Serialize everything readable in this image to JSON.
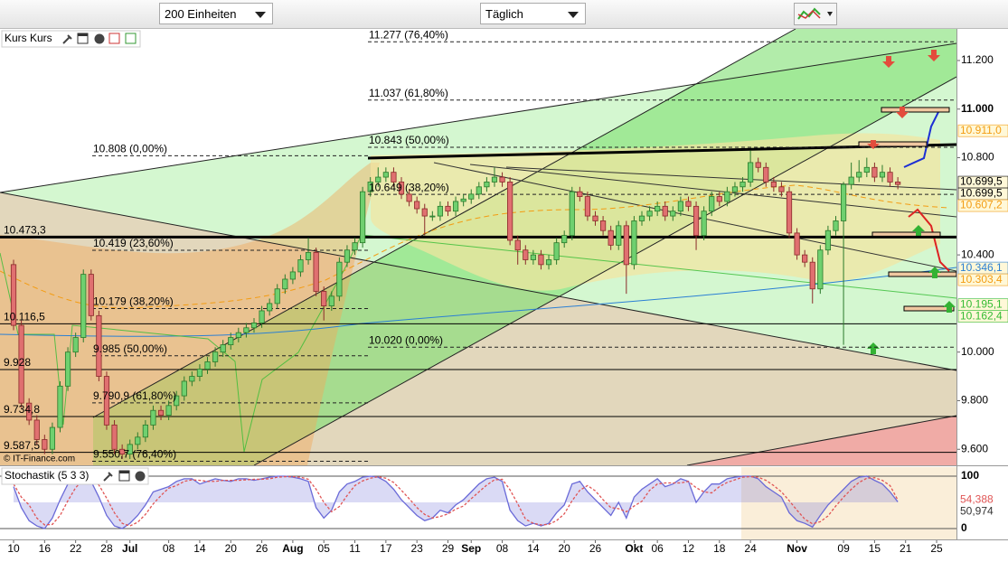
{
  "toolbar": {
    "units": "200 Einheiten",
    "interval": "Täglich"
  },
  "chart_data": [
    {
      "type": "candlestick",
      "title": "Kurs Kurs",
      "copyright": "© IT-Finance.com",
      "xlim": [
        -1.75,
        121.56
      ],
      "ylim": [
        9534,
        11330
      ],
      "yticks": [
        {
          "value": 11200,
          "label": "11.200"
        },
        {
          "value": 11000,
          "label": "11.000"
        },
        {
          "value": 10800,
          "label": "10.800"
        },
        {
          "value": 10400,
          "label": "10.400"
        },
        {
          "value": 10000,
          "label": "10.000"
        },
        {
          "value": 9800,
          "label": "9.800"
        },
        {
          "value": 9600,
          "label": "9.600"
        }
      ],
      "hlines": [
        {
          "value": 10473.3,
          "label": "10.473,3"
        },
        {
          "value": 10116.5,
          "label": "10.116,5"
        },
        {
          "value": 9928,
          "label": "9.928"
        },
        {
          "value": 9734.8,
          "label": "9.734,8"
        },
        {
          "value": 9587.5,
          "label": "9.587,5"
        }
      ],
      "fibonacci": [
        {
          "levels": [
            {
              "value": 10808,
              "label": "10.808 (0,00%)"
            },
            {
              "value": 10419,
              "label": "10.419 (23,60%)"
            },
            {
              "value": 10179,
              "label": "10.179 (38,20%)"
            },
            {
              "value": 9985,
              "label": "9.985 (50,00%)"
            },
            {
              "value": 9790.9,
              "label": "9.790,9 (61,80%)"
            },
            {
              "value": 9550.7,
              "label": "9.550,7 (76,40%)"
            }
          ]
        },
        {
          "levels": [
            {
              "value": 11277,
              "label": "11.277 (76,40%)"
            },
            {
              "value": 11037,
              "label": "11.037 (61,80%)"
            },
            {
              "value": 10843,
              "label": "10.843 (50,00%)"
            },
            {
              "value": 10649,
              "label": "10.649 (38,20%)"
            },
            {
              "value": 10020,
              "label": "10.020 (0,00%)"
            }
          ]
        }
      ],
      "last_values": [
        {
          "value": 10911,
          "label": "10.911,0",
          "color": "#f39c12"
        },
        {
          "value": 10699.5,
          "label": "10.699,5",
          "color": "#000000"
        },
        {
          "value": 10699.5,
          "label": "10.699,5",
          "color": "#000000"
        },
        {
          "value": 10607.2,
          "label": "10.607,2",
          "color": "#f39c12"
        },
        {
          "value": 10346.1,
          "label": "10.346,1",
          "color": "#2a7fd4"
        },
        {
          "value": 10303.4,
          "label": "10.303,4",
          "color": "#f39c12"
        },
        {
          "value": 10195.1,
          "label": "10.195,1",
          "color": "#33bb33"
        },
        {
          "value": 10162.4,
          "label": "10.162,4",
          "color": "#33bb33"
        }
      ],
      "candles": [
        [
          10360,
          10380,
          10090,
          10110
        ],
        [
          10110,
          10130,
          9770,
          9790
        ],
        [
          9790,
          9810,
          9700,
          9720
        ],
        [
          9720,
          9740,
          9620,
          9640
        ],
        [
          9640,
          9660,
          9580,
          9600
        ],
        [
          9600,
          9710,
          9580,
          9690
        ],
        [
          9690,
          9880,
          9670,
          9860
        ],
        [
          9860,
          10020,
          9840,
          10000
        ],
        [
          10000,
          10080,
          9980,
          10060
        ],
        [
          10060,
          10340,
          10040,
          10320
        ],
        [
          10320,
          10340,
          10130,
          10150
        ],
        [
          10150,
          10170,
          9880,
          9900
        ],
        [
          9900,
          9920,
          9680,
          9700
        ],
        [
          9700,
          9720,
          9580,
          9600
        ],
        [
          9600,
          9620,
          9560,
          9580
        ],
        [
          9580,
          9640,
          9560,
          9620
        ],
        [
          9620,
          9670,
          9600,
          9650
        ],
        [
          9650,
          9720,
          9630,
          9700
        ],
        [
          9700,
          9780,
          9680,
          9760
        ],
        [
          9760,
          9780,
          9720,
          9740
        ],
        [
          9740,
          9800,
          9720,
          9780
        ],
        [
          9780,
          9840,
          9760,
          9820
        ],
        [
          9820,
          9900,
          9800,
          9880
        ],
        [
          9880,
          9920,
          9860,
          9900
        ],
        [
          9900,
          9950,
          9880,
          9930
        ],
        [
          9930,
          9980,
          9910,
          9960
        ],
        [
          9960,
          10020,
          9940,
          10000
        ],
        [
          10000,
          10050,
          9980,
          10030
        ],
        [
          10030,
          10080,
          10010,
          10060
        ],
        [
          10060,
          10100,
          10040,
          10080
        ],
        [
          10080,
          10120,
          10060,
          10100
        ],
        [
          10100,
          10140,
          10080,
          10120
        ],
        [
          10120,
          10190,
          10100,
          10170
        ],
        [
          10170,
          10220,
          10150,
          10200
        ],
        [
          10200,
          10280,
          10180,
          10260
        ],
        [
          10260,
          10320,
          10240,
          10300
        ],
        [
          10300,
          10350,
          10280,
          10330
        ],
        [
          10330,
          10400,
          10310,
          10380
        ],
        [
          10380,
          10470,
          10360,
          10410
        ],
        [
          10410,
          10430,
          10230,
          10250
        ],
        [
          10250,
          10270,
          10130,
          10190
        ],
        [
          10190,
          10250,
          10170,
          10230
        ],
        [
          10230,
          10390,
          10210,
          10370
        ],
        [
          10370,
          10440,
          10350,
          10420
        ],
        [
          10420,
          10470,
          10400,
          10450
        ],
        [
          10450,
          10680,
          10430,
          10660
        ],
        [
          10660,
          10720,
          10640,
          10700
        ],
        [
          10700,
          10760,
          10680,
          10720
        ],
        [
          10720,
          10760,
          10700,
          10740
        ],
        [
          10740,
          10760,
          10680,
          10700
        ],
        [
          10700,
          10720,
          10630,
          10650
        ],
        [
          10650,
          10670,
          10600,
          10620
        ],
        [
          10620,
          10640,
          10570,
          10590
        ],
        [
          10590,
          10610,
          10480,
          10560
        ],
        [
          10560,
          10580,
          10540,
          10560
        ],
        [
          10560,
          10620,
          10540,
          10600
        ],
        [
          10600,
          10620,
          10560,
          10580
        ],
        [
          10580,
          10640,
          10560,
          10620
        ],
        [
          10620,
          10650,
          10600,
          10630
        ],
        [
          10630,
          10670,
          10610,
          10650
        ],
        [
          10650,
          10700,
          10630,
          10680
        ],
        [
          10680,
          10720,
          10660,
          10700
        ],
        [
          10700,
          10760,
          10680,
          10720
        ],
        [
          10720,
          10740,
          10680,
          10700
        ],
        [
          10700,
          10720,
          10440,
          10460
        ],
        [
          10460,
          10480,
          10360,
          10420
        ],
        [
          10420,
          10440,
          10360,
          10380
        ],
        [
          10380,
          10420,
          10360,
          10400
        ],
        [
          10400,
          10420,
          10340,
          10360
        ],
        [
          10360,
          10400,
          10340,
          10380
        ],
        [
          10380,
          10470,
          10360,
          10450
        ],
        [
          10450,
          10500,
          10430,
          10480
        ],
        [
          10480,
          10680,
          10460,
          10660
        ],
        [
          10660,
          10680,
          10620,
          10640
        ],
        [
          10640,
          10660,
          10540,
          10560
        ],
        [
          10560,
          10580,
          10520,
          10540
        ],
        [
          10540,
          10560,
          10480,
          10500
        ],
        [
          10500,
          10520,
          10420,
          10440
        ],
        [
          10440,
          10540,
          10420,
          10520
        ],
        [
          10520,
          10540,
          10240,
          10360
        ],
        [
          10360,
          10560,
          10340,
          10540
        ],
        [
          10540,
          10580,
          10520,
          10560
        ],
        [
          10560,
          10600,
          10540,
          10580
        ],
        [
          10580,
          10620,
          10560,
          10600
        ],
        [
          10600,
          10620,
          10540,
          10560
        ],
        [
          10560,
          10600,
          10540,
          10580
        ],
        [
          10580,
          10640,
          10560,
          10620
        ],
        [
          10620,
          10640,
          10580,
          10600
        ],
        [
          10600,
          10620,
          10420,
          10480
        ],
        [
          10480,
          10600,
          10460,
          10580
        ],
        [
          10580,
          10660,
          10560,
          10640
        ],
        [
          10640,
          10660,
          10600,
          10620
        ],
        [
          10620,
          10680,
          10600,
          10660
        ],
        [
          10660,
          10700,
          10640,
          10680
        ],
        [
          10680,
          10720,
          10660,
          10700
        ],
        [
          10700,
          10830,
          10680,
          10780
        ],
        [
          10780,
          10800,
          10740,
          10760
        ],
        [
          10760,
          10780,
          10680,
          10700
        ],
        [
          10700,
          10720,
          10660,
          10680
        ],
        [
          10680,
          10700,
          10640,
          10660
        ],
        [
          10660,
          10680,
          10470,
          10490
        ],
        [
          10490,
          10510,
          10380,
          10400
        ],
        [
          10400,
          10420,
          10350,
          10370
        ],
        [
          10370,
          10390,
          10200,
          10260
        ],
        [
          10260,
          10440,
          10240,
          10420
        ],
        [
          10420,
          10520,
          10400,
          10500
        ],
        [
          10500,
          10560,
          10480,
          10540
        ],
        [
          10540,
          10700,
          10030,
          10690
        ],
        [
          10690,
          10780,
          10670,
          10720
        ],
        [
          10720,
          10790,
          10700,
          10740
        ],
        [
          10740,
          10800,
          10720,
          10760
        ],
        [
          10760,
          10780,
          10700,
          10720
        ],
        [
          10720,
          10770,
          10700,
          10740
        ],
        [
          10740,
          10760,
          10680,
          10700
        ],
        [
          10700,
          10720,
          10670,
          10690
        ]
      ]
    },
    {
      "type": "line",
      "title": "Stochastik (5 3 3)",
      "xlim": [
        -1.75,
        121.56
      ],
      "ylim": [
        -20.7,
        117.2
      ],
      "yticks": [
        0,
        100
      ],
      "xticks": [
        {
          "value": 0,
          "label": "10"
        },
        {
          "value": 4,
          "label": "16"
        },
        {
          "value": 8,
          "label": "22"
        },
        {
          "value": 12,
          "label": "28"
        },
        {
          "value": 15,
          "label": "Jul"
        },
        {
          "value": 20,
          "label": "08"
        },
        {
          "value": 24,
          "label": "14"
        },
        {
          "value": 28,
          "label": "20"
        },
        {
          "value": 32,
          "label": "26"
        },
        {
          "value": 36,
          "label": "Aug"
        },
        {
          "value": 40,
          "label": "05"
        },
        {
          "value": 44,
          "label": "11"
        },
        {
          "value": 48,
          "label": "17"
        },
        {
          "value": 52,
          "label": "23"
        },
        {
          "value": 56,
          "label": "29"
        },
        {
          "value": 59,
          "label": "Sep"
        },
        {
          "value": 63,
          "label": "08"
        },
        {
          "value": 67,
          "label": "14"
        },
        {
          "value": 71,
          "label": "20"
        },
        {
          "value": 75,
          "label": "26"
        },
        {
          "value": 80,
          "label": "Okt"
        },
        {
          "value": 83,
          "label": "06"
        },
        {
          "value": 87,
          "label": "12"
        },
        {
          "value": 91,
          "label": "18"
        },
        {
          "value": 95,
          "label": "24"
        },
        {
          "value": 101,
          "label": "Nov"
        },
        {
          "value": 107,
          "label": "09"
        },
        {
          "value": 111,
          "label": "15"
        },
        {
          "value": 115,
          "label": "21"
        },
        {
          "value": 119,
          "label": "25"
        }
      ],
      "series": [
        {
          "color": "#6a6ad8",
          "values": [
            80,
            40,
            15,
            5,
            0,
            20,
            55,
            85,
            95,
            100,
            90,
            60,
            25,
            5,
            0,
            10,
            25,
            45,
            70,
            75,
            80,
            90,
            95,
            95,
            85,
            90,
            95,
            92,
            90,
            95,
            95,
            92,
            95,
            98,
            100,
            100,
            98,
            95,
            90,
            40,
            20,
            35,
            70,
            85,
            90,
            98,
            100,
            98,
            90,
            75,
            55,
            40,
            25,
            15,
            20,
            35,
            30,
            45,
            55,
            70,
            85,
            95,
            98,
            90,
            35,
            15,
            5,
            10,
            5,
            10,
            30,
            45,
            85,
            90,
            70,
            55,
            40,
            25,
            50,
            20,
            60,
            75,
            85,
            95,
            80,
            85,
            95,
            90,
            50,
            70,
            85,
            85,
            95,
            98,
            100,
            100,
            95,
            80,
            70,
            60,
            30,
            15,
            10,
            3,
            25,
            45,
            60,
            75,
            90,
            98,
            100,
            92,
            85,
            70,
            50.974
          ]
        },
        {
          "color": "#e05555",
          "values": [
            85,
            60,
            45,
            20,
            7,
            8,
            25,
            53,
            78,
            93,
            95,
            83,
            58,
            30,
            10,
            5,
            12,
            27,
            47,
            63,
            77,
            82,
            90,
            93,
            92,
            90,
            90,
            92,
            92,
            92,
            93,
            94,
            94,
            95,
            98,
            99,
            99,
            98,
            94,
            75,
            50,
            32,
            42,
            63,
            82,
            91,
            96,
            99,
            96,
            88,
            73,
            57,
            40,
            27,
            20,
            23,
            28,
            37,
            43,
            57,
            70,
            83,
            93,
            94,
            74,
            47,
            18,
            10,
            7,
            8,
            15,
            28,
            53,
            73,
            82,
            72,
            55,
            40,
            38,
            32,
            43,
            52,
            73,
            85,
            87,
            87,
            87,
            90,
            78,
            70,
            68,
            80,
            88,
            93,
            98,
            99,
            98,
            92,
            82,
            70,
            53,
            35,
            18,
            9,
            13,
            24,
            43,
            60,
            75,
            88,
            96,
            97,
            92,
            82,
            54.388
          ]
        }
      ],
      "last_values": [
        {
          "value": 54.388,
          "label": "54,388",
          "color": "#e05555"
        },
        {
          "value": 50.974,
          "label": "50,974",
          "color": "#333333"
        }
      ]
    }
  ]
}
